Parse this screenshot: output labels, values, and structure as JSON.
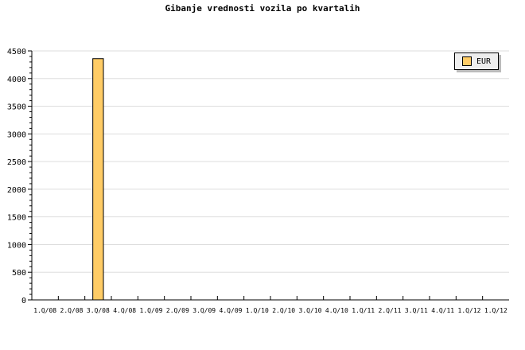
{
  "chart_data": {
    "type": "bar",
    "title": "Gibanje vrednosti vozila po kvartalih",
    "categories": [
      "1.Q/08",
      "2.Q/08",
      "3.Q/08",
      "4.Q/08",
      "1.Q/09",
      "2.Q/09",
      "3.Q/09",
      "4.Q/09",
      "1.Q/10",
      "2.Q/10",
      "3.Q/10",
      "4.Q/10",
      "1.Q/11",
      "2.Q/11",
      "3.Q/11",
      "4.Q/11",
      "1.Q/12",
      "1.Q/12"
    ],
    "series": [
      {
        "name": "EUR",
        "values": [
          0,
          0,
          4360,
          0,
          0,
          0,
          0,
          0,
          0,
          0,
          0,
          0,
          0,
          0,
          0,
          0,
          0,
          0
        ],
        "color": "#ffcc66"
      }
    ],
    "ylim": [
      0,
      4500
    ],
    "yticks": [
      0,
      500,
      1000,
      1500,
      2000,
      2500,
      3000,
      3500,
      4000,
      4500
    ],
    "grid": true,
    "legend": "top-right"
  }
}
